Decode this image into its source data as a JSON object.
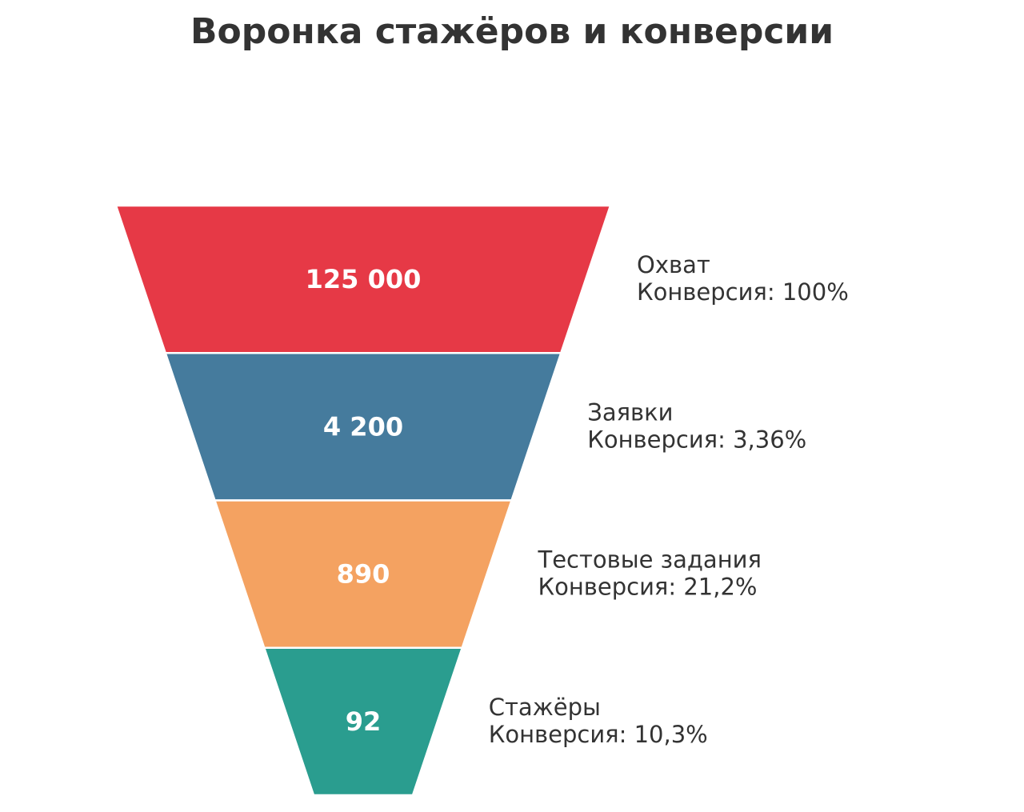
{
  "chart_data": {
    "type": "funnel",
    "title": "Воронка стажёров и конверсии",
    "stages": [
      {
        "name": "Охват",
        "value": 125000,
        "value_label": "125 000",
        "conversion_label": "Конверсия: 100%",
        "color": "#E63946"
      },
      {
        "name": "Заявки",
        "value": 4200,
        "value_label": "4 200",
        "conversion_label": "Конверсия: 3,36%",
        "color": "#457B9D"
      },
      {
        "name": "Тестовые задания",
        "value": 890,
        "value_label": "890",
        "conversion_label": "Конверсия: 21,2%",
        "color": "#F4A261"
      },
      {
        "name": "Стажёры",
        "value": 92,
        "value_label": "92",
        "conversion_label": "Конверсия: 10,3%",
        "color": "#2A9D8F"
      }
    ],
    "value_text_color": "#FFFFFF",
    "label_text_color": "#333333"
  }
}
